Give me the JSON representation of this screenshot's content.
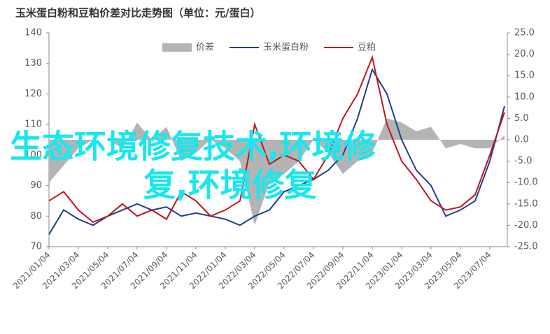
{
  "chart_data": {
    "type": "line",
    "title": "玉米蛋白粉和豆粕价差对比走势图（单位：元/蛋白）",
    "overlay_text": [
      "生态环境修复技术,环境修",
      "复,环境修复"
    ],
    "categories": [
      "2021/01/04",
      null,
      "2021/03/04",
      null,
      "2021/05/04",
      null,
      "2021/07/04",
      null,
      "2021/09/04",
      null,
      "2021/11/04",
      null,
      "2022/01/04",
      null,
      "2022/03/04",
      null,
      "2022/05/04",
      null,
      "2022/07/04",
      null,
      "2022/09/04",
      null,
      "2022/11/04",
      null,
      "2023/01/04",
      null,
      "2023/03/04",
      null,
      "2023/05/04",
      null,
      "2023/07/04",
      null
    ],
    "series": [
      {
        "name": "价差",
        "color": "#b4b4b4",
        "axis": "y2",
        "area": true,
        "values": [
          -10,
          -6,
          -2,
          0,
          0,
          -2,
          4,
          0,
          3,
          -5,
          -3,
          0,
          -2,
          -5,
          -20,
          -10,
          -8,
          -5,
          0,
          -3,
          -8,
          -5,
          -3,
          5,
          4,
          2,
          3,
          -2,
          -1,
          -2,
          -2,
          1
        ]
      },
      {
        "name": "玉米蛋白粉",
        "color": "#1f3f8c",
        "values": [
          74,
          82,
          79,
          77,
          80,
          82,
          84,
          82,
          83,
          80,
          81,
          80,
          79,
          77,
          80,
          82,
          88,
          90,
          92,
          95,
          100,
          112,
          128,
          120,
          105,
          95,
          90,
          80,
          82,
          85,
          98,
          116
        ]
      },
      {
        "name": "豆粕",
        "color": "#c0141e",
        "values": [
          85,
          88,
          82,
          78,
          80,
          84,
          80,
          82,
          79,
          88,
          85,
          80,
          82,
          85,
          110,
          97,
          100,
          98,
          92,
          100,
          112,
          120,
          132,
          110,
          98,
          92,
          85,
          82,
          83,
          87,
          100,
          114
        ]
      }
    ],
    "ylim": [
      70,
      140
    ],
    "yticks": [
      70,
      80,
      90,
      100,
      110,
      120,
      130,
      140
    ],
    "y2lim": [
      -25,
      25
    ],
    "y2ticks": [
      {
        "value": -25,
        "label": "-25.0"
      },
      {
        "value": -20,
        "label": "-20.0"
      },
      {
        "value": -15,
        "label": "-15.0"
      },
      {
        "value": -10,
        "label": "-10.0"
      },
      {
        "value": -5,
        "label": "-5.0"
      },
      {
        "value": 0,
        "label": "0.0"
      },
      {
        "value": 5,
        "label": "5.0"
      },
      {
        "value": 10,
        "label": "10.0"
      },
      {
        "value": 15,
        "label": "15.0"
      },
      {
        "value": 20,
        "label": "20.0"
      },
      {
        "value": 25,
        "label": "25.0"
      }
    ],
    "legend": "top"
  }
}
